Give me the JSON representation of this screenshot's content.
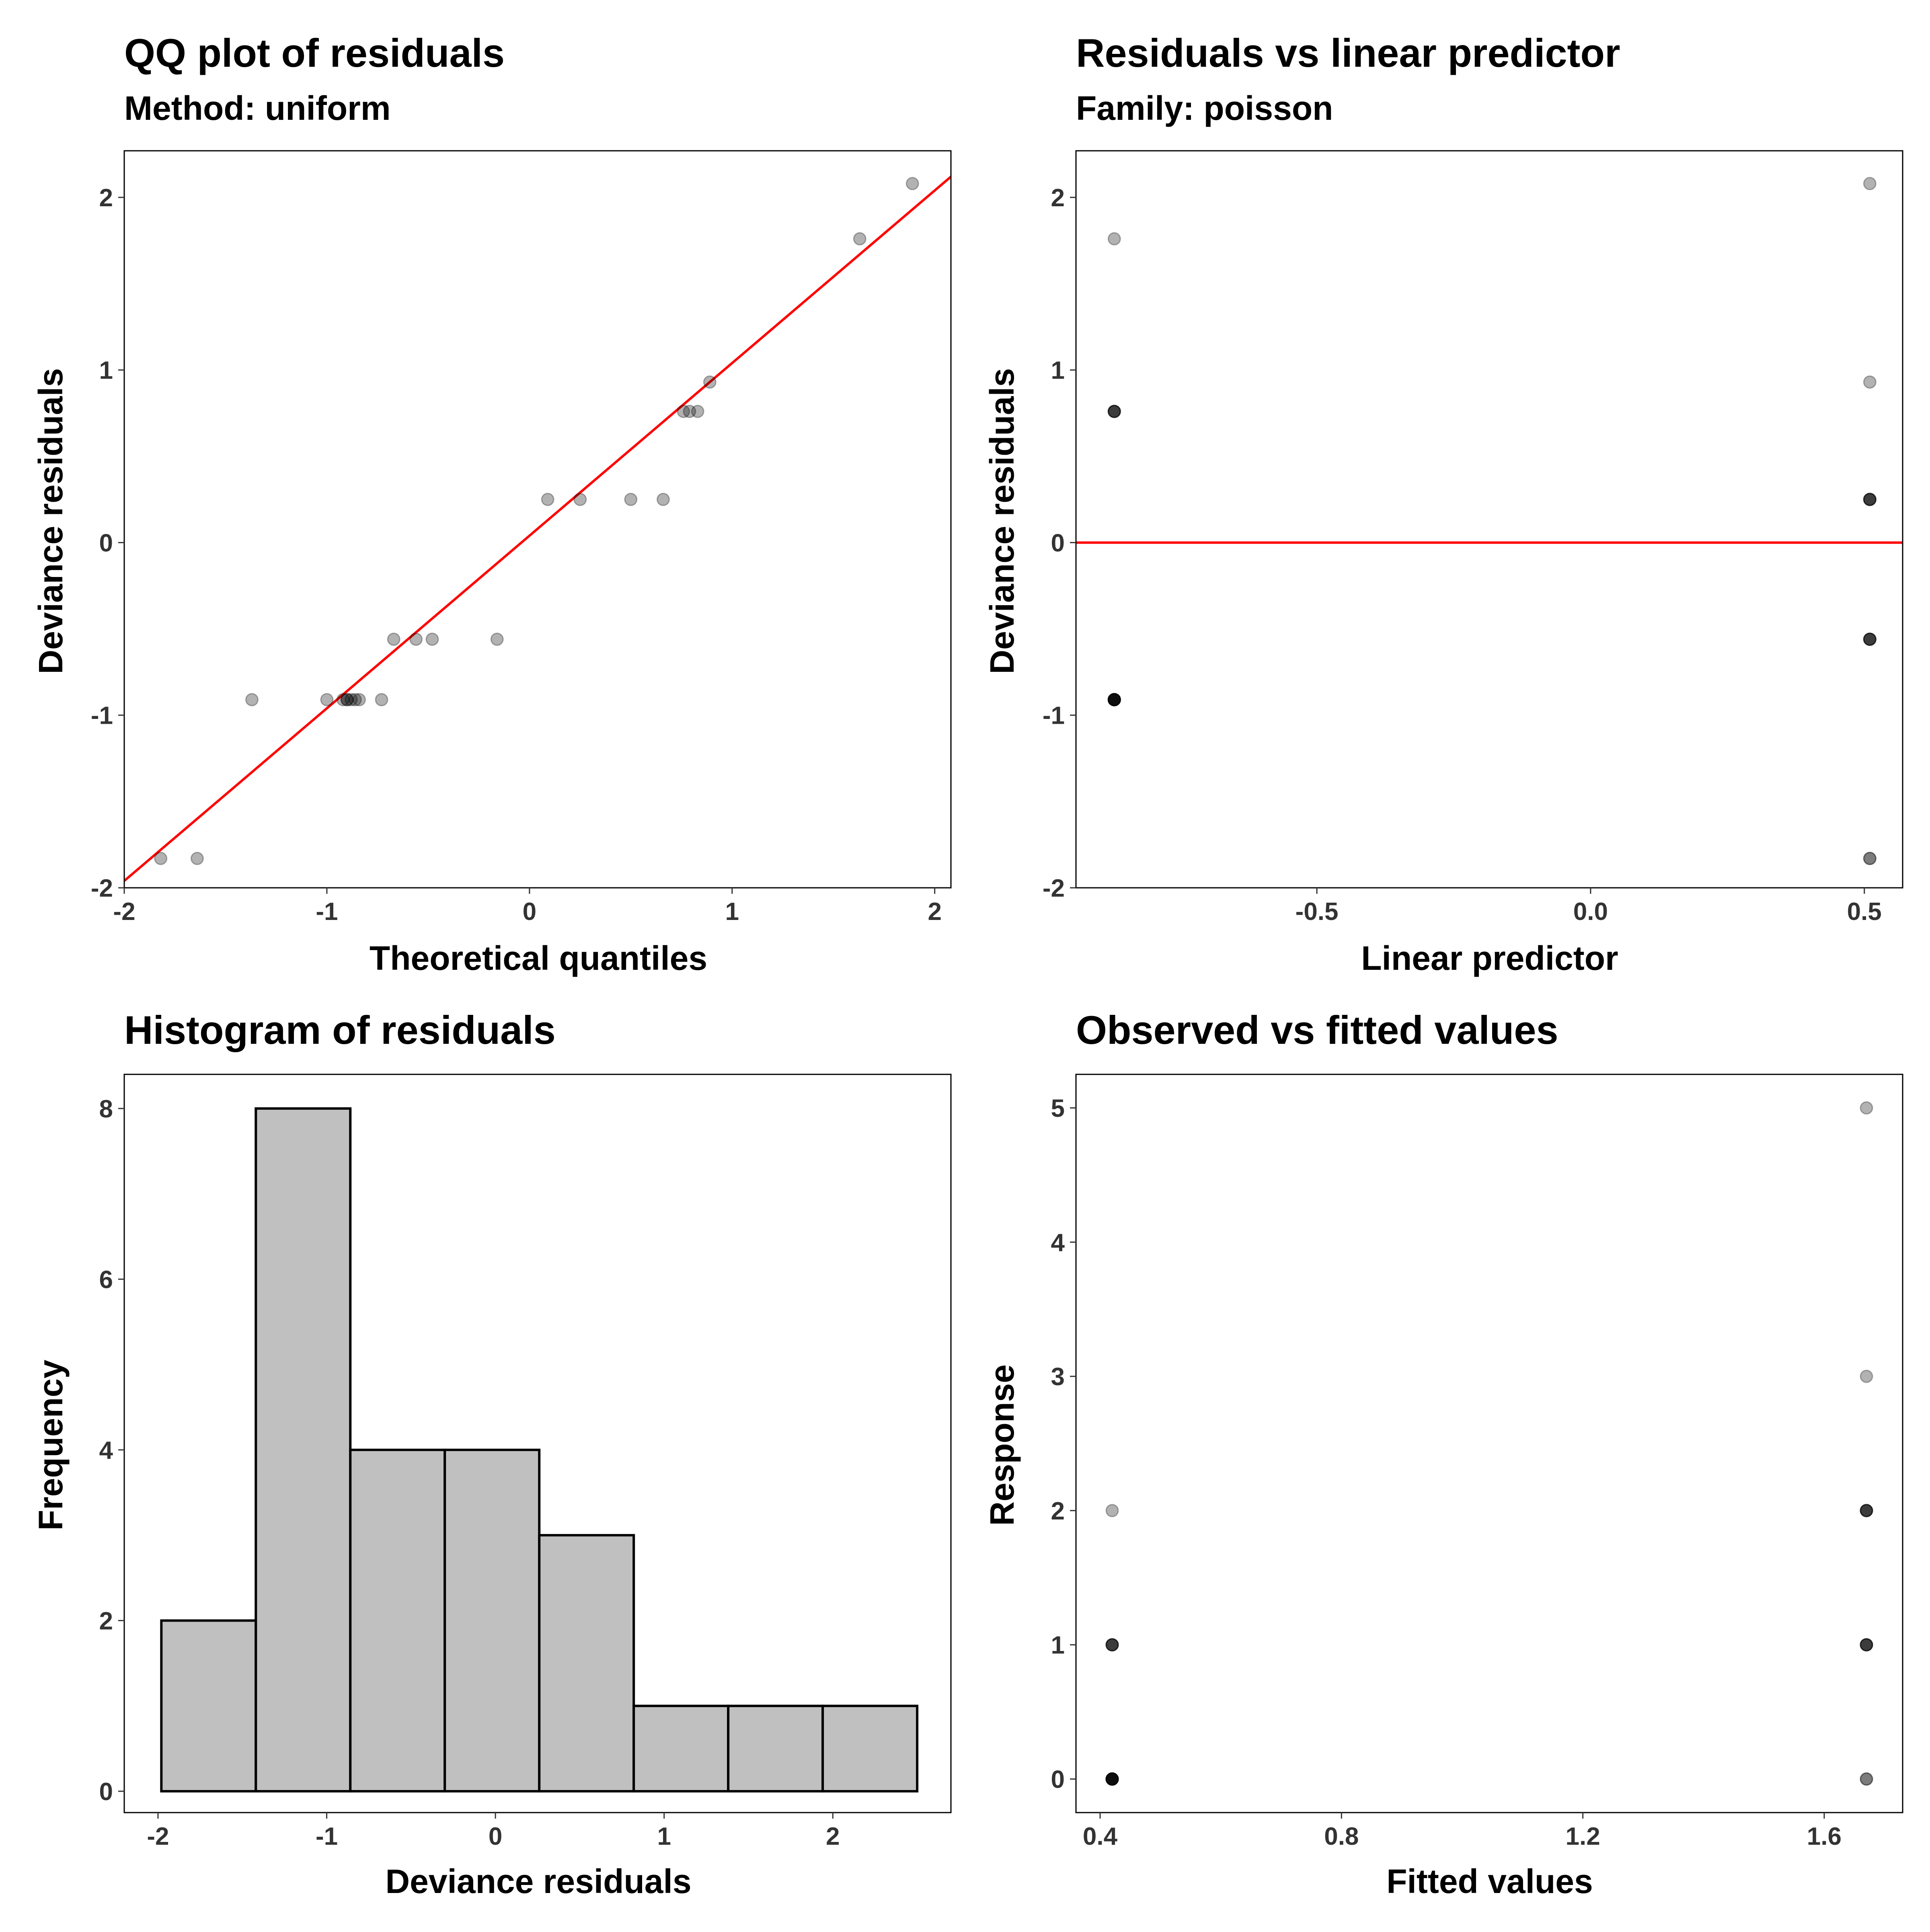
{
  "colors": {
    "reference_line": "#ff0000",
    "point": "#000000",
    "histogram_fill": "#c0c0c0",
    "histogram_stroke": "#000000",
    "panel_border": "#000000",
    "tick_text": "#333333"
  },
  "point_alpha": 0.3,
  "chart_data": [
    {
      "type": "scatter",
      "title": "QQ plot of residuals",
      "subtitle": "Method: uniform",
      "xlabel": "Theoretical quantiles",
      "ylabel": "Deviance residuals",
      "xlim": [
        -2.0,
        2.08
      ],
      "ylim": [
        -2.0,
        2.27
      ],
      "xticks": [
        -2,
        -1,
        0,
        1,
        2
      ],
      "xtick_labels": [
        "-2",
        "-1",
        "0",
        "1",
        "2"
      ],
      "yticks": [
        -2,
        -1,
        0,
        1,
        2
      ],
      "ytick_labels": [
        "-2",
        "-1",
        "0",
        "1",
        "2"
      ],
      "grid": false,
      "reference_line": {
        "intercept": 0.04,
        "slope": 1.0
      },
      "points": [
        {
          "x": -1.82,
          "y": -1.83
        },
        {
          "x": -1.64,
          "y": -1.83
        },
        {
          "x": -1.37,
          "y": -0.91
        },
        {
          "x": -1.0,
          "y": -0.91
        },
        {
          "x": -0.92,
          "y": -0.91
        },
        {
          "x": -0.9,
          "y": -0.91
        },
        {
          "x": -0.9,
          "y": -0.91
        },
        {
          "x": -0.88,
          "y": -0.91
        },
        {
          "x": -0.86,
          "y": -0.91
        },
        {
          "x": -0.84,
          "y": -0.91
        },
        {
          "x": -0.73,
          "y": -0.91
        },
        {
          "x": -0.67,
          "y": -0.56
        },
        {
          "x": -0.56,
          "y": -0.56
        },
        {
          "x": -0.48,
          "y": -0.56
        },
        {
          "x": -0.16,
          "y": -0.56
        },
        {
          "x": 0.09,
          "y": 0.25
        },
        {
          "x": 0.25,
          "y": 0.25
        },
        {
          "x": 0.5,
          "y": 0.25
        },
        {
          "x": 0.66,
          "y": 0.25
        },
        {
          "x": 0.76,
          "y": 0.76
        },
        {
          "x": 0.79,
          "y": 0.76
        },
        {
          "x": 0.83,
          "y": 0.76
        },
        {
          "x": 0.89,
          "y": 0.93
        },
        {
          "x": 1.63,
          "y": 1.76
        },
        {
          "x": 1.89,
          "y": 2.08
        }
      ]
    },
    {
      "type": "scatter",
      "title": "Residuals vs linear predictor",
      "subtitle": "Family: poisson",
      "xlabel": "Linear predictor",
      "ylabel": "Deviance residuals",
      "xlim": [
        -0.94,
        0.57
      ],
      "ylim": [
        -2.0,
        2.27
      ],
      "xticks": [
        -0.5,
        0.0,
        0.5
      ],
      "xtick_labels": [
        "-0.5",
        "0.0",
        "0.5"
      ],
      "yticks": [
        -2,
        -1,
        0,
        1,
        2
      ],
      "ytick_labels": [
        "-2",
        "-1",
        "0",
        "1",
        "2"
      ],
      "grid": false,
      "reference_line": {
        "intercept": 0,
        "slope": 0
      },
      "points": [
        {
          "x": -0.87,
          "y": 1.76
        },
        {
          "x": -0.87,
          "y": 0.76
        },
        {
          "x": -0.87,
          "y": 0.76
        },
        {
          "x": -0.87,
          "y": 0.76
        },
        {
          "x": -0.87,
          "y": 0.76
        },
        {
          "x": -0.87,
          "y": -0.91
        },
        {
          "x": -0.87,
          "y": -0.91
        },
        {
          "x": -0.87,
          "y": -0.91
        },
        {
          "x": -0.87,
          "y": -0.91
        },
        {
          "x": -0.87,
          "y": -0.91
        },
        {
          "x": -0.87,
          "y": -0.91
        },
        {
          "x": -0.87,
          "y": -0.91
        },
        {
          "x": -0.87,
          "y": -0.91
        },
        {
          "x": 0.51,
          "y": 2.08
        },
        {
          "x": 0.51,
          "y": 0.93
        },
        {
          "x": 0.51,
          "y": 0.25
        },
        {
          "x": 0.51,
          "y": 0.25
        },
        {
          "x": 0.51,
          "y": 0.25
        },
        {
          "x": 0.51,
          "y": 0.25
        },
        {
          "x": 0.51,
          "y": -0.56
        },
        {
          "x": 0.51,
          "y": -0.56
        },
        {
          "x": 0.51,
          "y": -0.56
        },
        {
          "x": 0.51,
          "y": -0.56
        },
        {
          "x": 0.51,
          "y": -1.83
        },
        {
          "x": 0.51,
          "y": -1.83
        }
      ]
    },
    {
      "type": "bar",
      "title": "Histogram of residuals",
      "xlabel": "Deviance residuals",
      "ylabel": "Frequency",
      "xlim": [
        -2.2,
        2.7
      ],
      "ylim": [
        -0.25,
        8.4
      ],
      "xticks": [
        -2,
        -1,
        0,
        1,
        2
      ],
      "xtick_labels": [
        "-2",
        "-1",
        "0",
        "1",
        "2"
      ],
      "yticks": [
        0,
        2,
        4,
        6,
        8
      ],
      "ytick_labels": [
        "0",
        "2",
        "4",
        "6",
        "8"
      ],
      "grid": false,
      "bins": [
        {
          "start": -1.98,
          "end": -1.42,
          "count": 2
        },
        {
          "start": -1.42,
          "end": -0.86,
          "count": 8
        },
        {
          "start": -0.86,
          "end": -0.3,
          "count": 4
        },
        {
          "start": -0.3,
          "end": 0.26,
          "count": 4
        },
        {
          "start": 0.26,
          "end": 0.82,
          "count": 3
        },
        {
          "start": 0.82,
          "end": 1.38,
          "count": 1
        },
        {
          "start": 1.38,
          "end": 1.94,
          "count": 1
        },
        {
          "start": 1.94,
          "end": 2.5,
          "count": 1
        }
      ]
    },
    {
      "type": "scatter",
      "title": "Observed vs fitted values",
      "xlabel": "Fitted values",
      "ylabel": "Response",
      "xlim": [
        0.36,
        1.73
      ],
      "ylim": [
        -0.25,
        5.25
      ],
      "xticks": [
        0.4,
        0.8,
        1.2,
        1.6
      ],
      "xtick_labels": [
        "0.4",
        "0.8",
        "1.2",
        "1.6"
      ],
      "yticks": [
        0,
        1,
        2,
        3,
        4,
        5
      ],
      "ytick_labels": [
        "0",
        "1",
        "2",
        "3",
        "4",
        "5"
      ],
      "grid": false,
      "points": [
        {
          "x": 0.42,
          "y": 2
        },
        {
          "x": 0.42,
          "y": 1
        },
        {
          "x": 0.42,
          "y": 1
        },
        {
          "x": 0.42,
          "y": 1
        },
        {
          "x": 0.42,
          "y": 1
        },
        {
          "x": 0.42,
          "y": 0
        },
        {
          "x": 0.42,
          "y": 0
        },
        {
          "x": 0.42,
          "y": 0
        },
        {
          "x": 0.42,
          "y": 0
        },
        {
          "x": 0.42,
          "y": 0
        },
        {
          "x": 0.42,
          "y": 0
        },
        {
          "x": 0.42,
          "y": 0
        },
        {
          "x": 0.42,
          "y": 0
        },
        {
          "x": 1.67,
          "y": 5
        },
        {
          "x": 1.67,
          "y": 3
        },
        {
          "x": 1.67,
          "y": 2
        },
        {
          "x": 1.67,
          "y": 2
        },
        {
          "x": 1.67,
          "y": 2
        },
        {
          "x": 1.67,
          "y": 2
        },
        {
          "x": 1.67,
          "y": 1
        },
        {
          "x": 1.67,
          "y": 1
        },
        {
          "x": 1.67,
          "y": 1
        },
        {
          "x": 1.67,
          "y": 1
        },
        {
          "x": 1.67,
          "y": 0
        },
        {
          "x": 1.67,
          "y": 0
        }
      ]
    }
  ]
}
